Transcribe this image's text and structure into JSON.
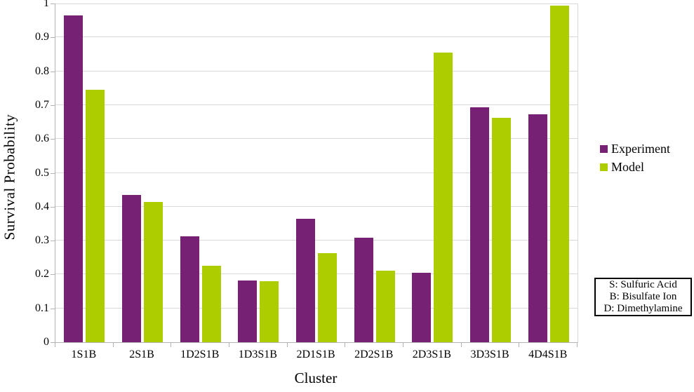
{
  "chart_data": {
    "type": "bar",
    "title": "",
    "xlabel": "Cluster",
    "ylabel": "Survival Probability",
    "ylim": [
      0,
      1
    ],
    "ytick_step": 0.1,
    "grid": "horizontal",
    "legend_position": "right",
    "categories": [
      "1S1B",
      "2S1B",
      "1D2S1B",
      "1D3S1B",
      "2D1S1B",
      "2D2S1B",
      "2D3S1B",
      "3D3S1B",
      "4D4S1B"
    ],
    "series": [
      {
        "name": "Experiment",
        "color": "#762173",
        "values": [
          0.965,
          0.435,
          0.312,
          0.183,
          0.365,
          0.308,
          0.206,
          0.694,
          0.673
        ]
      },
      {
        "name": "Model",
        "color": "#AECD00",
        "values": [
          0.746,
          0.415,
          0.226,
          0.18,
          0.263,
          0.211,
          0.856,
          0.663,
          0.994
        ]
      }
    ]
  },
  "annotation": {
    "lines": [
      "S: Sulfuric Acid",
      "B: Bisulfate Ion",
      "D: Dimethylamine"
    ]
  },
  "colors": {
    "experiment": "#762173",
    "model": "#AECD00",
    "gridline": "#d9d9d9",
    "axis": "#b3b3b3",
    "text": "#000000",
    "background": "#ffffff"
  }
}
